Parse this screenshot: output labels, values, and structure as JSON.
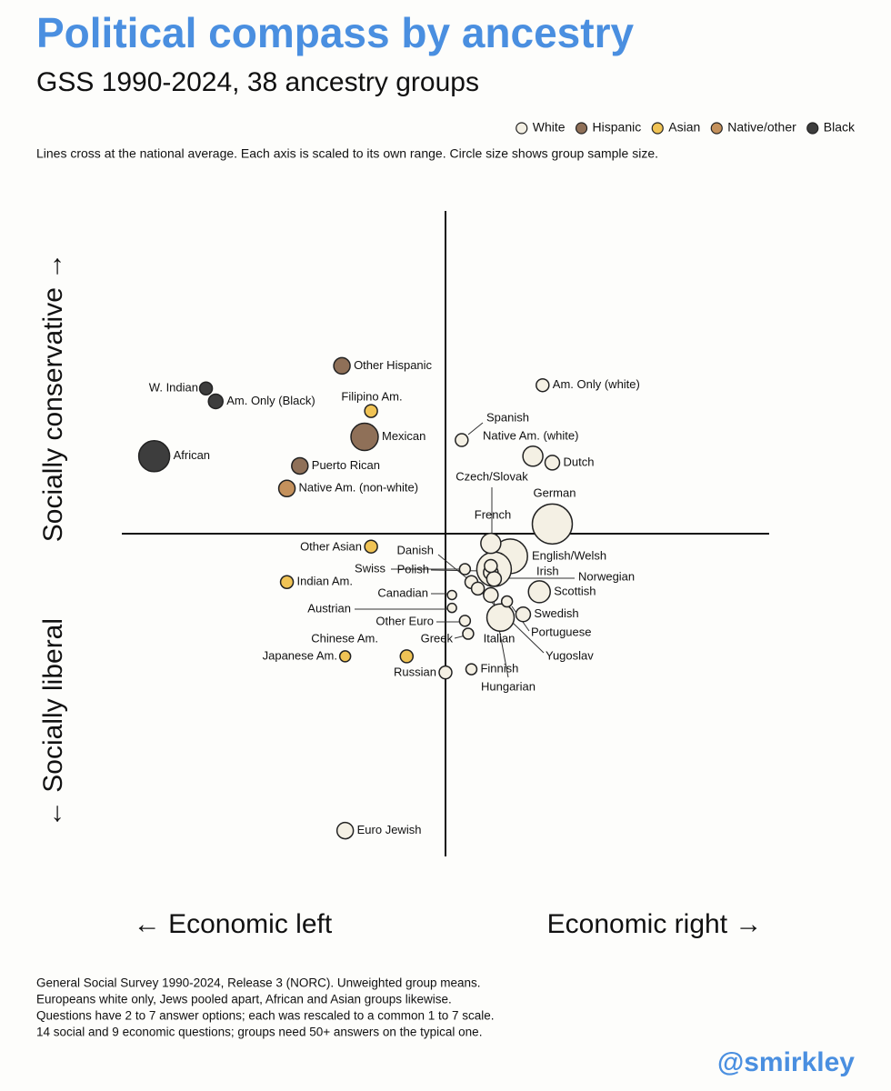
{
  "chart_data": {
    "type": "scatter",
    "title": "Political compass by ancestry",
    "subtitle": "GSS 1990-2024, 38 ancestry groups",
    "note": "Lines cross at the national average. Each axis is scaled to its own range. Circle size shows group sample size.",
    "y_label_top": "Socially conservative →",
    "y_label_bottom": "← Socially liberal",
    "x_label_left": "← Economic left",
    "x_label_right": "Economic right →",
    "footnotes": [
      "General Social Survey 1990-2024, Release 3 (NORC). Unweighted group means.",
      "Europeans white only, Jews pooled apart, African and Asian groups likewise.",
      "Questions have 2 to 7 answer options; each was rescaled to a common 1 to 7 scale.",
      "14 social and 9 economic questions; groups need 50+ answers on the typical one."
    ],
    "credit": "@smirkley",
    "xlim": [
      -1,
      1
    ],
    "ylim": [
      -1,
      1
    ],
    "x_average": 0,
    "y_average": 0,
    "series": [
      {
        "name": "White",
        "color": "#f4f0e4",
        "labels": [
          "Am. Only (white)",
          "Spanish",
          "Native Am. (white)",
          "Dutch",
          "German",
          "Czech/Slovak",
          "French",
          "English/Welsh",
          "Danish",
          "Swiss",
          "Polish",
          "Irish",
          "Norwegian",
          "Canadian",
          "Scottish",
          "Austrian",
          "Swedish",
          "Other Euro",
          "Greek",
          "Portuguese",
          "Italian",
          "Yugoslav",
          "Hungarian",
          "Russian",
          "Finnish",
          "Euro Jewish"
        ],
        "x": [
          0.3,
          0.05,
          0.27,
          0.33,
          0.33,
          0.14,
          0.14,
          0.2,
          0.08,
          0.06,
          0.14,
          0.15,
          0.15,
          0.02,
          0.29,
          0.02,
          0.24,
          0.06,
          0.07,
          0.19,
          0.17,
          0.1,
          0.14,
          0.0,
          0.08,
          -0.31
        ],
        "values": [
          0.46,
          0.29,
          0.24,
          0.22,
          0.03,
          -0.1,
          -0.03,
          -0.07,
          -0.15,
          -0.11,
          -0.12,
          -0.11,
          -0.14,
          -0.19,
          -0.18,
          -0.23,
          -0.25,
          -0.27,
          -0.31,
          -0.21,
          -0.26,
          -0.17,
          -0.19,
          -0.43,
          -0.42,
          -0.92
        ],
        "sizes": [
          490,
          490,
          1210,
          640,
          4840,
          490,
          1210,
          3610,
          490,
          360,
          640,
          3610,
          640,
          250,
          1440,
          250,
          640,
          360,
          360,
          360,
          2250,
          490,
          640,
          490,
          360,
          810
        ]
      },
      {
        "name": "Hispanic",
        "color": "#8f7058",
        "labels": [
          "Other Hispanic",
          "Mexican",
          "Puerto Rican"
        ],
        "x": [
          -0.32,
          -0.25,
          -0.45
        ],
        "values": [
          0.52,
          0.3,
          0.21
        ],
        "sizes": [
          810,
          2250,
          810
        ]
      },
      {
        "name": "Asian",
        "color": "#f0c355",
        "labels": [
          "Filipino Am.",
          "Chinese Am.",
          "Japanese Am.",
          "Other Asian",
          "Indian Am."
        ],
        "x": [
          -0.23,
          -0.12,
          -0.31,
          -0.23,
          -0.49
        ],
        "values": [
          0.38,
          -0.38,
          -0.38,
          -0.04,
          -0.15
        ],
        "sizes": [
          490,
          490,
          360,
          490,
          490
        ]
      },
      {
        "name": "Native/other",
        "color": "#c4915c",
        "labels": [
          "Native Am. (non-white)"
        ],
        "x": [
          -0.49
        ],
        "values": [
          0.14
        ],
        "sizes": [
          810
        ]
      },
      {
        "name": "Black",
        "color": "#3d3d3d",
        "labels": [
          "W. Indian",
          "Am. Only (Black)",
          "African"
        ],
        "x": [
          -0.74,
          -0.71,
          -0.9
        ],
        "values": [
          0.45,
          0.41,
          0.24
        ],
        "sizes": [
          490,
          640,
          2890
        ]
      }
    ]
  }
}
